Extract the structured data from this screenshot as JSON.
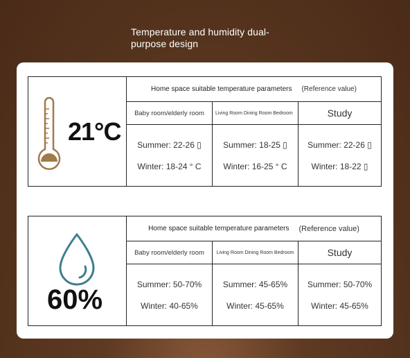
{
  "title": "Temperature and humidity dual-purpose design",
  "temperature_panel": {
    "reading": "21°C",
    "header": "Home space suitable temperature parameters",
    "reference": "(Reference value)",
    "columns": [
      {
        "name": "Baby room/elderly room",
        "summer": "Summer: 22-26 ▯",
        "winter": "Winter: 18-24 ° C"
      },
      {
        "name": "Living Room Dining Room Bedroom",
        "summer": "Summer: 18-25 ▯",
        "winter": "Winter: 16-25 ° C"
      },
      {
        "name": "Study",
        "summer": "Summer: 22-26 ▯",
        "winter": "Winter: 18-22 ▯"
      }
    ],
    "icon": "thermometer-icon",
    "icon_color": "#a07a4a"
  },
  "humidity_panel": {
    "reading": "60%",
    "header": "Home space suitable temperature parameters",
    "reference": "(Reference value)",
    "columns": [
      {
        "name": "Baby room/elderly room",
        "summer": "Summer: 50-70%",
        "winter": "Winter: 40-65%"
      },
      {
        "name": "Living Room Dining Room Bedroom",
        "summer": "Summer: 45-65%",
        "winter": "Winter: 45-65%"
      },
      {
        "name": "Study",
        "summer": "Summer: 50-70%",
        "winter": "Winter: 45-65%"
      }
    ],
    "icon": "water-drop-icon",
    "icon_color": "#3e7d8f"
  }
}
